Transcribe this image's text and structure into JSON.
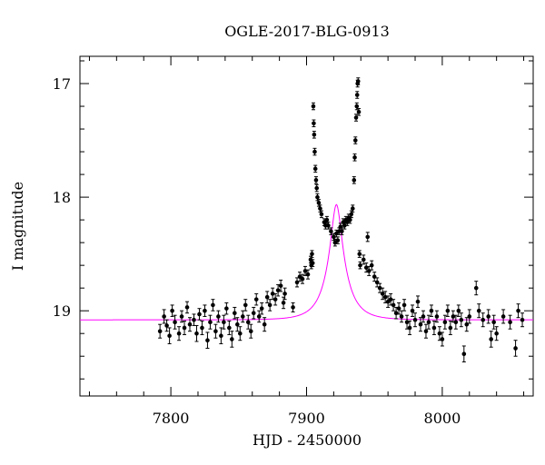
{
  "chart_data": {
    "type": "scatter",
    "title": "OGLE-2017-BLG-0913",
    "xlabel": "HJD - 2450000",
    "ylabel": "I magnitude",
    "xlim": [
      7733,
      8067
    ],
    "ylim": [
      19.75,
      16.76
    ],
    "y_inverted": true,
    "x_ticks": [
      7800,
      7900,
      8000
    ],
    "x_tick_labels": [
      "7800",
      "7900",
      "8000"
    ],
    "y_ticks": [
      17,
      18,
      19
    ],
    "y_tick_labels": [
      "17",
      "18",
      "19"
    ],
    "grid": false,
    "colors": {
      "data": "#000000",
      "model": "#ff00ff"
    },
    "series": [
      {
        "type": "scatter_errorbar",
        "color": "#000000",
        "points": [
          [
            7792,
            19.18,
            0.06
          ],
          [
            7795,
            19.05,
            0.06
          ],
          [
            7797,
            19.13,
            0.05
          ],
          [
            7799,
            19.22,
            0.07
          ],
          [
            7801,
            19.0,
            0.05
          ],
          [
            7803,
            19.1,
            0.06
          ],
          [
            7806,
            19.2,
            0.06
          ],
          [
            7808,
            19.05,
            0.05
          ],
          [
            7810,
            19.15,
            0.06
          ],
          [
            7812,
            18.97,
            0.05
          ],
          [
            7814,
            19.12,
            0.06
          ],
          [
            7817,
            19.08,
            0.05
          ],
          [
            7819,
            19.2,
            0.07
          ],
          [
            7821,
            19.03,
            0.05
          ],
          [
            7823,
            19.15,
            0.06
          ],
          [
            7825,
            19.0,
            0.05
          ],
          [
            7827,
            19.26,
            0.07
          ],
          [
            7829,
            19.1,
            0.06
          ],
          [
            7831,
            18.95,
            0.05
          ],
          [
            7833,
            19.18,
            0.06
          ],
          [
            7835,
            19.05,
            0.05
          ],
          [
            7837,
            19.22,
            0.07
          ],
          [
            7839,
            19.1,
            0.06
          ],
          [
            7841,
            18.98,
            0.05
          ],
          [
            7843,
            19.15,
            0.06
          ],
          [
            7845,
            19.25,
            0.07
          ],
          [
            7847,
            19.02,
            0.05
          ],
          [
            7849,
            19.12,
            0.06
          ],
          [
            7851,
            19.2,
            0.06
          ],
          [
            7853,
            19.05,
            0.05
          ],
          [
            7855,
            18.95,
            0.05
          ],
          [
            7857,
            19.1,
            0.06
          ],
          [
            7859,
            19.18,
            0.06
          ],
          [
            7861,
            19.02,
            0.05
          ],
          [
            7863,
            18.9,
            0.05
          ],
          [
            7865,
            19.05,
            0.05
          ],
          [
            7867,
            18.98,
            0.05
          ],
          [
            7869,
            19.12,
            0.06
          ],
          [
            7871,
            18.88,
            0.05
          ],
          [
            7873,
            18.95,
            0.05
          ],
          [
            7875,
            18.85,
            0.05
          ],
          [
            7877,
            18.9,
            0.05
          ],
          [
            7879,
            18.82,
            0.05
          ],
          [
            7881,
            18.78,
            0.05
          ],
          [
            7883,
            18.93,
            0.05
          ],
          [
            7884,
            18.85,
            0.05
          ],
          [
            7890,
            18.97,
            0.04
          ],
          [
            7893,
            18.75,
            0.04
          ],
          [
            7895,
            18.7,
            0.04
          ],
          [
            7897,
            18.72,
            0.04
          ],
          [
            7899,
            18.65,
            0.04
          ],
          [
            7901,
            18.68,
            0.04
          ],
          [
            7903,
            18.55,
            0.03
          ],
          [
            7903.5,
            18.6,
            0.03
          ],
          [
            7904,
            18.5,
            0.03
          ],
          [
            7904.5,
            18.58,
            0.03
          ],
          [
            7905,
            17.2,
            0.03
          ],
          [
            7905.3,
            17.35,
            0.03
          ],
          [
            7905.6,
            17.45,
            0.03
          ],
          [
            7906,
            17.6,
            0.03
          ],
          [
            7906.5,
            17.75,
            0.03
          ],
          [
            7907,
            17.85,
            0.03
          ],
          [
            7907.5,
            17.92,
            0.03
          ],
          [
            7908,
            18.0,
            0.03
          ],
          [
            7909,
            18.05,
            0.03
          ],
          [
            7910,
            18.1,
            0.03
          ],
          [
            7911,
            18.15,
            0.03
          ],
          [
            7913,
            18.22,
            0.03
          ],
          [
            7914,
            18.25,
            0.03
          ],
          [
            7915,
            18.2,
            0.03
          ],
          [
            7916,
            18.25,
            0.03
          ],
          [
            7918,
            18.3,
            0.03
          ],
          [
            7920,
            18.35,
            0.03
          ],
          [
            7921,
            18.4,
            0.03
          ],
          [
            7922,
            18.32,
            0.03
          ],
          [
            7923,
            18.38,
            0.03
          ],
          [
            7924,
            18.3,
            0.03
          ],
          [
            7925,
            18.26,
            0.03
          ],
          [
            7926,
            18.3,
            0.03
          ],
          [
            7927,
            18.22,
            0.03
          ],
          [
            7928,
            18.25,
            0.03
          ],
          [
            7929,
            18.2,
            0.03
          ],
          [
            7930,
            18.22,
            0.03
          ],
          [
            7931,
            18.18,
            0.03
          ],
          [
            7932,
            18.2,
            0.03
          ],
          [
            7933,
            18.15,
            0.03
          ],
          [
            7934,
            18.1,
            0.03
          ],
          [
            7935,
            17.85,
            0.03
          ],
          [
            7935.5,
            17.65,
            0.03
          ],
          [
            7936,
            17.5,
            0.03
          ],
          [
            7936.5,
            17.3,
            0.03
          ],
          [
            7937,
            17.2,
            0.03
          ],
          [
            7937.3,
            17.1,
            0.03
          ],
          [
            7937.6,
            17.0,
            0.03
          ],
          [
            7938,
            16.98,
            0.03
          ],
          [
            7938.5,
            17.25,
            0.03
          ],
          [
            7939,
            18.5,
            0.03
          ],
          [
            7939.5,
            18.6,
            0.03
          ],
          [
            7942,
            18.55,
            0.04
          ],
          [
            7944,
            18.62,
            0.04
          ],
          [
            7945,
            18.35,
            0.04
          ],
          [
            7946,
            18.65,
            0.04
          ],
          [
            7948,
            18.6,
            0.04
          ],
          [
            7950,
            18.7,
            0.04
          ],
          [
            7952,
            18.75,
            0.04
          ],
          [
            7954,
            18.8,
            0.04
          ],
          [
            7956,
            18.85,
            0.05
          ],
          [
            7958,
            18.88,
            0.05
          ],
          [
            7960,
            18.92,
            0.05
          ],
          [
            7962,
            18.9,
            0.05
          ],
          [
            7964,
            18.95,
            0.05
          ],
          [
            7966,
            19.02,
            0.05
          ],
          [
            7968,
            18.98,
            0.05
          ],
          [
            7970,
            19.05,
            0.05
          ],
          [
            7972,
            18.95,
            0.05
          ],
          [
            7974,
            19.1,
            0.06
          ],
          [
            7976,
            19.15,
            0.06
          ],
          [
            7978,
            19.0,
            0.05
          ],
          [
            7980,
            19.08,
            0.06
          ],
          [
            7982,
            18.92,
            0.05
          ],
          [
            7984,
            19.12,
            0.06
          ],
          [
            7986,
            19.05,
            0.05
          ],
          [
            7988,
            19.18,
            0.06
          ],
          [
            7990,
            19.1,
            0.06
          ],
          [
            7992,
            19.0,
            0.05
          ],
          [
            7994,
            19.15,
            0.06
          ],
          [
            7996,
            19.05,
            0.05
          ],
          [
            7998,
            19.2,
            0.06
          ],
          [
            8000,
            19.25,
            0.06
          ],
          [
            8002,
            19.1,
            0.06
          ],
          [
            8004,
            19.0,
            0.05
          ],
          [
            8006,
            19.15,
            0.06
          ],
          [
            8008,
            19.05,
            0.05
          ],
          [
            8010,
            19.1,
            0.06
          ],
          [
            8012,
            19.0,
            0.05
          ],
          [
            8014,
            19.08,
            0.06
          ],
          [
            8016,
            19.38,
            0.07
          ],
          [
            8018,
            19.12,
            0.06
          ],
          [
            8020,
            19.05,
            0.06
          ],
          [
            8025,
            18.8,
            0.06
          ],
          [
            8027,
            19.0,
            0.06
          ],
          [
            8030,
            19.08,
            0.06
          ],
          [
            8034,
            19.05,
            0.06
          ],
          [
            8036,
            19.25,
            0.07
          ],
          [
            8038,
            19.1,
            0.06
          ],
          [
            8040,
            19.2,
            0.06
          ],
          [
            8045,
            19.05,
            0.06
          ],
          [
            8050,
            19.1,
            0.06
          ],
          [
            8054,
            19.33,
            0.07
          ],
          [
            8056,
            19.0,
            0.06
          ],
          [
            8059,
            19.08,
            0.06
          ]
        ]
      },
      {
        "type": "line",
        "color": "#ff00ff",
        "model": {
          "t0": 7922,
          "tE": 15,
          "u0": 0.25,
          "baseline": 19.08,
          "fs": 0.5
        }
      }
    ]
  }
}
